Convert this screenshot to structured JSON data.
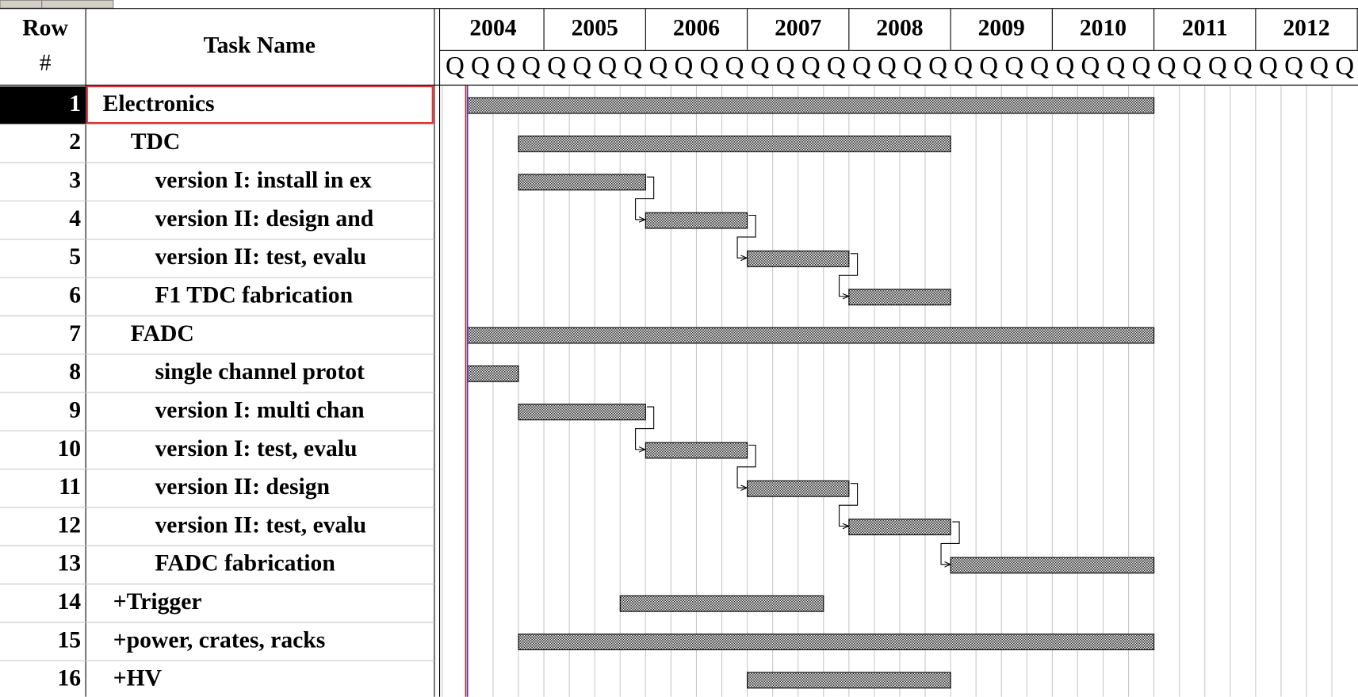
{
  "header": {
    "row_label": "Row",
    "row_label_2": "#",
    "task_name": "Task Name"
  },
  "timeline": {
    "range": [
      2004,
      2013
    ],
    "years": [
      2004,
      2005,
      2006,
      2007,
      2008,
      2009,
      2010,
      2011,
      2012
    ],
    "quarter_label": "Q"
  },
  "tasks": [
    {
      "row": 1,
      "name": "Electronics",
      "start": 2004.25,
      "end": 2011
    },
    {
      "row": 2,
      "name": "TDC",
      "start": 2004.75,
      "end": 2009
    },
    {
      "row": 3,
      "name": "version I: install in ex",
      "start": 2004.75,
      "end": 2006
    },
    {
      "row": 4,
      "name": "version II: design and",
      "start": 2006,
      "end": 2007
    },
    {
      "row": 5,
      "name": "version II: test, evalu",
      "start": 2007,
      "end": 2008
    },
    {
      "row": 6,
      "name": "F1 TDC fabrication",
      "start": 2008,
      "end": 2009
    },
    {
      "row": 7,
      "name": "FADC",
      "start": 2004.25,
      "end": 2011
    },
    {
      "row": 8,
      "name": "single channel protot",
      "start": 2004.25,
      "end": 2004.75
    },
    {
      "row": 9,
      "name": "version I: multi chan",
      "start": 2004.75,
      "end": 2006
    },
    {
      "row": 10,
      "name": "version I: test, evalu",
      "start": 2006,
      "end": 2007
    },
    {
      "row": 11,
      "name": "version II: design",
      "start": 2007,
      "end": 2008
    },
    {
      "row": 12,
      "name": "version II: test, evalu",
      "start": 2008,
      "end": 2009
    },
    {
      "row": 13,
      "name": "FADC fabrication",
      "start": 2009,
      "end": 2011
    },
    {
      "row": 14,
      "name": "+Trigger",
      "start": 2005.75,
      "end": 2007.75
    },
    {
      "row": 15,
      "name": "+power, crates, racks",
      "start": 2004.75,
      "end": 2011
    },
    {
      "row": 16,
      "name": "+HV",
      "start": 2007,
      "end": 2009
    }
  ]
}
